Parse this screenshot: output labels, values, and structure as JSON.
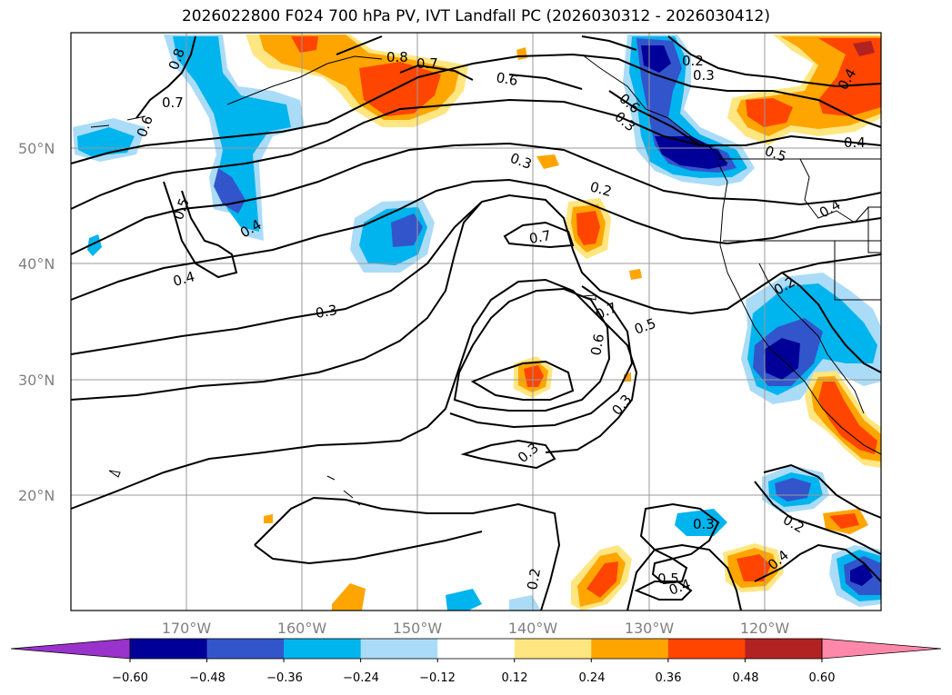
{
  "title": "2026022800 F024 700 hPa PV, IVT Landfall PC (2026030312 - 2026030412)",
  "lat_labels": [
    "50°N",
    "40°N",
    "30°N",
    "20°N"
  ],
  "lon_labels": [
    "170°W",
    "160°W",
    "150°W",
    "140°W",
    "130°W",
    "120°W"
  ],
  "contour_labels": [
    "0.8",
    "0.7",
    "0.6",
    "0.6",
    "0.7",
    "0.3",
    "0.2",
    "0.4",
    "0.5",
    "0.4",
    "0.3",
    "0.7",
    "0.2",
    "0.3",
    "0.4",
    "0.4",
    "0.5",
    "0.4",
    "0.3",
    "0.2",
    "0.7",
    "0.6",
    "0.5",
    "0.3",
    "0.3",
    "0.2",
    "0.3",
    "0.5",
    "0.4",
    "0.2",
    "0.4",
    "0.8",
    "0.6"
  ],
  "colorbar": {
    "ticks": [
      "−0.60",
      "−0.48",
      "−0.36",
      "−0.24",
      "−0.12",
      "0.12",
      "0.24",
      "0.36",
      "0.48",
      "0.60"
    ],
    "colors": [
      "#9933cc",
      "#000099",
      "#3355cc",
      "#00b4ee",
      "#aadcf8",
      "#ffffff",
      "#ffe680",
      "#ffa500",
      "#ff4500",
      "#b22222",
      "#ff88aa"
    ]
  }
}
